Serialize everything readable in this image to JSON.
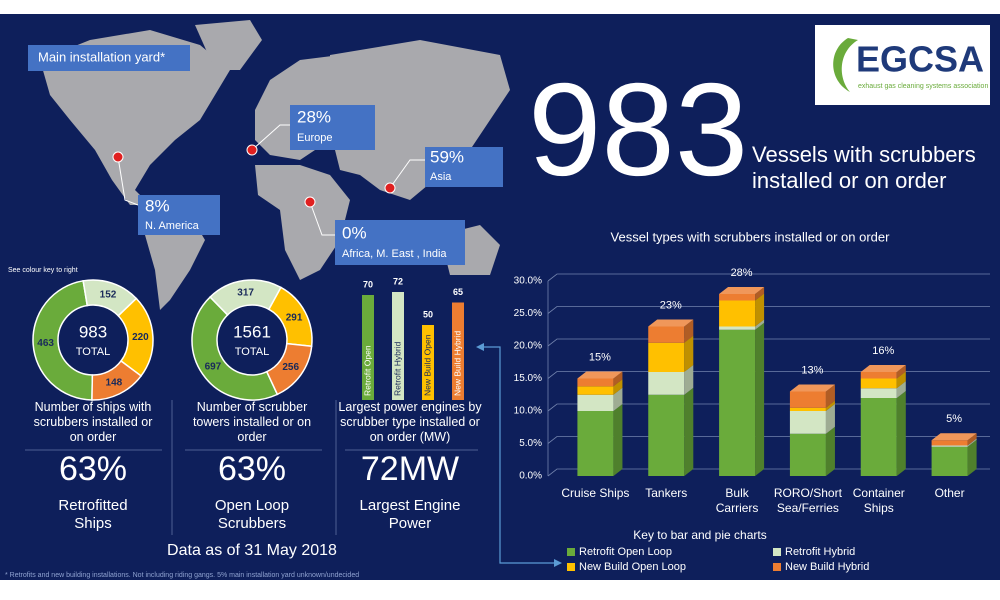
{
  "header": {
    "logo": "EGCSA",
    "logo_tagline": "exhaust gas cleaning systems association",
    "headline_number": "983",
    "headline_line_1": "Vessels with scrubbers",
    "headline_line_2": "installed or on order"
  },
  "map": {
    "yard_label": "Main installation yard*",
    "regions": [
      {
        "share": "28%",
        "name": "Europe"
      },
      {
        "share": "59%",
        "name": "Asia"
      },
      {
        "share": "8%",
        "name": "N. America"
      },
      {
        "share": "0%",
        "name": "Africa, M. East , India"
      }
    ]
  },
  "key_note": "See colour key to right",
  "stats": [
    {
      "caption": "Number of ships with scrubbers installed or on order",
      "figure": "63%",
      "label": "Retrofitted Ships"
    },
    {
      "caption": "Number of scrubber towers installed or on order",
      "figure": "63%",
      "label": "Open Loop Scrubbers"
    },
    {
      "caption": "Largest power engines by scrubber type installed or on order (MW)",
      "figure": "72MW",
      "label": "Largest Engine Power"
    }
  ],
  "date_note": "Data as of 31 May 2018",
  "footnote": "* Retrofits and new building installations. Not including riding gangs. 5% main installation yard unknown/undecided",
  "legend_title": "Key to bar and pie charts",
  "chart_data": [
    {
      "type": "donut",
      "values": [
        463,
        152,
        220,
        148
      ],
      "colors": [
        "#6aab3b",
        "#d3e6c4",
        "#ffc000",
        "#ed7d31"
      ],
      "center_label": "983",
      "center_sublabel": "TOTAL"
    },
    {
      "type": "donut",
      "values": [
        697,
        317,
        291,
        256
      ],
      "colors": [
        "#6aab3b",
        "#d3e6c4",
        "#ffc000",
        "#ed7d31"
      ],
      "center_label": "1561",
      "center_sublabel": "TOTAL"
    },
    {
      "type": "bar",
      "categories": [
        "Retrofit Open",
        "Retrofit Hybrid",
        "New Build Open",
        "New Build Hybrid"
      ],
      "values": [
        70,
        72,
        50,
        65
      ],
      "colors": [
        "#6aab3b",
        "#d3e6c4",
        "#ffc000",
        "#ed7d31"
      ]
    },
    {
      "type": "stacked-bar",
      "title": "Vessel types with scrubbers installed or on order",
      "categories": [
        "Cruise Ships",
        "Tankers",
        "Bulk Carriers",
        "RORO/Short Sea/Ferries",
        "Container Ships",
        "Other"
      ],
      "series": [
        {
          "name": "Retrofit Open Loop",
          "color": "#6aab3b",
          "values": [
            10,
            12.5,
            22.5,
            6.5,
            12,
            4.5
          ]
        },
        {
          "name": "Retrofit Hybrid",
          "color": "#d3e6c4",
          "values": [
            2.5,
            3.5,
            0.5,
            3.5,
            1.5,
            0.2
          ]
        },
        {
          "name": "New Build Open Loop",
          "color": "#ffc000",
          "values": [
            1.3,
            4.5,
            4,
            0.5,
            1.5,
            0
          ]
        },
        {
          "name": "New Build Hybrid",
          "color": "#ed7d31",
          "values": [
            1.2,
            2.5,
            1,
            2.5,
            1,
            0.8
          ]
        }
      ],
      "total_labels": [
        "15%",
        "23%",
        "28%",
        "13%",
        "16%",
        "5%"
      ],
      "ylim": [
        0,
        30
      ],
      "yticks": [
        {
          "value": 0,
          "label": "0.0%"
        },
        {
          "value": 5,
          "label": "5.0%"
        },
        {
          "value": 10,
          "label": "10.0%"
        },
        {
          "value": 15,
          "label": "15.0%"
        },
        {
          "value": 20,
          "label": "20.0%"
        },
        {
          "value": 25,
          "label": "25.0%"
        },
        {
          "value": 30,
          "label": "30.0%"
        }
      ],
      "grid": true
    }
  ]
}
